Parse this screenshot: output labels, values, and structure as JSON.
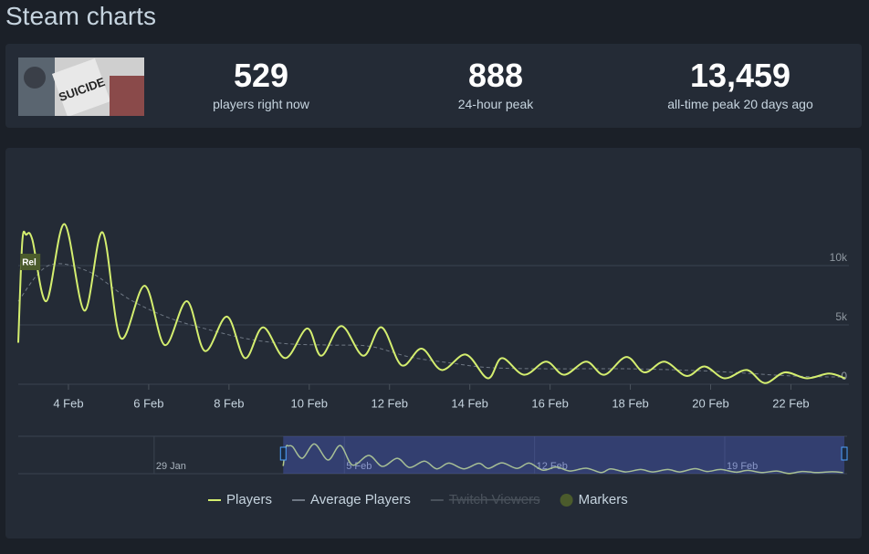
{
  "title": "Steam charts",
  "stats": [
    {
      "value": "529",
      "label": "players right now"
    },
    {
      "value": "888",
      "label": "24-hour peak"
    },
    {
      "value": "13,459",
      "label": "all-time peak 20 days ago"
    }
  ],
  "chart_data": {
    "type": "line",
    "xlim": [
      2.75,
      23.4
    ],
    "ylim": [
      0,
      17000
    ],
    "xticks": [
      {
        "value": 4,
        "label": "4 Feb"
      },
      {
        "value": 6,
        "label": "6 Feb"
      },
      {
        "value": 8,
        "label": "8 Feb"
      },
      {
        "value": 10,
        "label": "10 Feb"
      },
      {
        "value": 12,
        "label": "12 Feb"
      },
      {
        "value": 14,
        "label": "14 Feb"
      },
      {
        "value": 16,
        "label": "16 Feb"
      },
      {
        "value": 18,
        "label": "18 Feb"
      },
      {
        "value": 20,
        "label": "20 Feb"
      },
      {
        "value": 22,
        "label": "22 Feb"
      }
    ],
    "yticks": [
      0,
      {
        "value": 5000,
        "label": "5k"
      },
      {
        "value": 10000,
        "label": "10k"
      }
    ],
    "grid": true,
    "series": [
      {
        "name": "Players",
        "color": "#d4ee6f",
        "x": [
          2.75,
          2.85,
          2.95,
          3.1,
          3.45,
          3.9,
          4.4,
          4.85,
          5.3,
          5.9,
          6.4,
          6.95,
          7.4,
          7.95,
          8.4,
          8.85,
          9.4,
          9.95,
          10.3,
          10.8,
          11.35,
          11.8,
          12.3,
          12.8,
          13.3,
          13.9,
          14.45,
          14.8,
          15.35,
          15.9,
          16.35,
          16.9,
          17.35,
          17.9,
          18.35,
          18.85,
          19.4,
          19.85,
          20.35,
          20.9,
          21.35,
          21.85,
          22.4,
          22.95,
          23.35
        ],
        "values": [
          3500,
          12000,
          12600,
          12200,
          7000,
          13500,
          6200,
          12800,
          3900,
          8300,
          3300,
          7000,
          2800,
          5700,
          2200,
          4800,
          2200,
          4700,
          2400,
          4900,
          2400,
          4800,
          1600,
          3000,
          1200,
          2500,
          500,
          2200,
          800,
          1900,
          800,
          1900,
          800,
          2300,
          1000,
          1900,
          700,
          1500,
          500,
          1200,
          100,
          1000,
          500,
          900,
          500
        ]
      },
      {
        "name": "Average Players",
        "color": "#6f7884",
        "dashed": true,
        "x": [
          2.75,
          3.5,
          4.5,
          5.5,
          6.5,
          7.5,
          8.5,
          9.5,
          10.5,
          11.5,
          12.5,
          13.5,
          14.5,
          16,
          18,
          20,
          22,
          23.35
        ],
        "values": [
          7000,
          10000,
          9500,
          7200,
          5600,
          4600,
          3800,
          3400,
          3300,
          3200,
          2300,
          1800,
          1400,
          1300,
          1300,
          1100,
          700,
          600
        ]
      },
      {
        "name": "Twitch Viewers",
        "color": "#4a525c",
        "disabled": true
      }
    ],
    "markers": {
      "name": "Markers",
      "color": "#4b5b2c",
      "items": [
        {
          "label": "Rel",
          "x": 2.8
        }
      ]
    },
    "navigator": {
      "xlim": [
        -7,
        23.5
      ],
      "xticks": [
        {
          "value": -2,
          "label": "29 Jan"
        },
        {
          "value": 5,
          "label": "5 Feb"
        },
        {
          "value": 12,
          "label": "12 Feb"
        },
        {
          "value": 19,
          "label": "19 Feb"
        }
      ]
    }
  }
}
